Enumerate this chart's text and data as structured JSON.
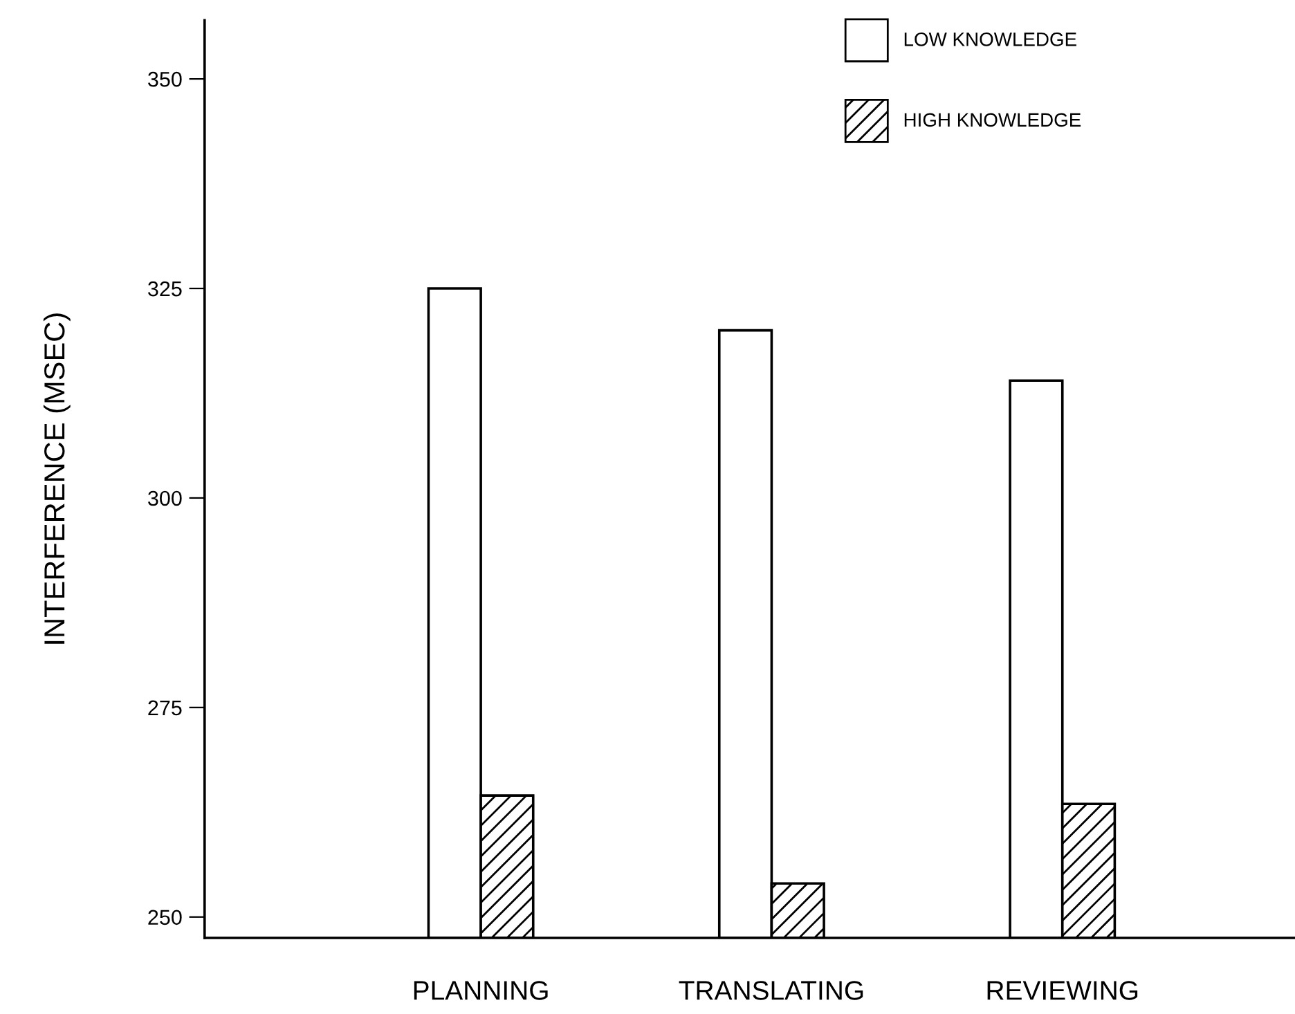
{
  "chart_data": {
    "type": "bar",
    "ylabel": "INTERFERENCE (MSEC)",
    "categories": [
      "PLANNING",
      "TRANSLATING",
      "REVIEWING"
    ],
    "series": [
      {
        "name": "LOW KNOWLEDGE",
        "color": "#ffffff",
        "values": [
          325,
          320,
          314
        ]
      },
      {
        "name": "HIGH KNOWLEDGE",
        "color": "#000000",
        "values": [
          264.5,
          254,
          263.5
        ]
      }
    ],
    "ylim": [
      247.5,
      357
    ],
    "yticks": [
      250,
      275,
      300,
      325,
      350
    ],
    "grid": false,
    "legend": "top right"
  }
}
